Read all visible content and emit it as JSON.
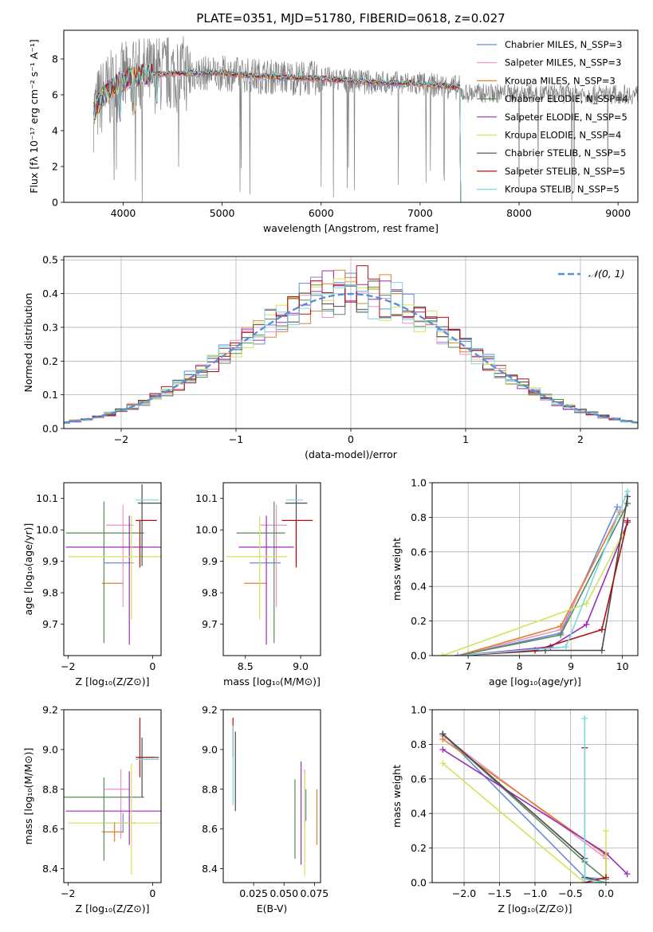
{
  "figure_title": "PLATE=0351, MJD=51780, FIBERID=0618, z=0.027",
  "colors": {
    "c0": "#6a8ad8",
    "c1": "#e994c9",
    "c2": "#e0822e",
    "c3": "#5a8a5a",
    "c4": "#9a2fb8",
    "c5": "#d4e35a",
    "c6": "#4a4a4a",
    "c7": "#b01010",
    "c8": "#7ad8e0",
    "grid": "#b0b0b0",
    "obs": "#808080",
    "normal": "#5b8fd4"
  },
  "chart_data": [
    {
      "id": "spectrum",
      "type": "line",
      "title": "PLATE=0351, MJD=51780, FIBERID=0618, z=0.027",
      "xlabel": "wavelength [Angstrom, rest frame]",
      "ylabel": "Flux [fλ 10⁻¹⁷ erg cm⁻² s⁻¹ A⁻¹]",
      "xlim": [
        3400,
        9200
      ],
      "ylim": [
        0,
        9.6
      ],
      "xticks": [
        "4000",
        "5000",
        "6000",
        "7000",
        "8000",
        "9000"
      ],
      "yticks": [
        "0",
        "2",
        "4",
        "6",
        "8"
      ],
      "grid": false,
      "legend_position": "top-right",
      "model_coverage": [
        3700,
        7420
      ],
      "observed_coverage": [
        3700,
        9200
      ],
      "continuum": {
        "x": [
          3700,
          3800,
          3950,
          4000,
          4200,
          4500,
          5000,
          5500,
          6000,
          6500,
          7000,
          7400
        ],
        "y": [
          5.0,
          6.0,
          6.6,
          6.8,
          7.1,
          7.2,
          7.2,
          7.0,
          6.9,
          6.7,
          6.6,
          6.4
        ]
      },
      "series": [
        {
          "name": "Chabrier MILES, N_SSP=3",
          "color_key": "c0"
        },
        {
          "name": "Salpeter MILES, N_SSP=3",
          "color_key": "c1"
        },
        {
          "name": "Kroupa MILES, N_SSP=3",
          "color_key": "c2"
        },
        {
          "name": "Chabrier ELODIE, N_SSP=4",
          "color_key": "c3"
        },
        {
          "name": "Salpeter ELODIE, N_SSP=5",
          "color_key": "c4"
        },
        {
          "name": "Kroupa ELODIE, N_SSP=4",
          "color_key": "c5"
        },
        {
          "name": "Chabrier STELIB, N_SSP=5",
          "color_key": "c6"
        },
        {
          "name": "Salpeter STELIB, N_SSP=5",
          "color_key": "c7"
        },
        {
          "name": "Kroupa STELIB, N_SSP=5",
          "color_key": "c8"
        }
      ]
    },
    {
      "id": "residuals",
      "type": "line",
      "xlabel": "(data-model)/error",
      "ylabel": "Normed distribution",
      "xlim": [
        -2.5,
        2.5
      ],
      "ylim": [
        0,
        0.51
      ],
      "xticks": [
        "−2",
        "−1",
        "0",
        "1",
        "2"
      ],
      "yticks": [
        "0.0",
        "0.1",
        "0.2",
        "0.3",
        "0.4",
        "0.5"
      ],
      "grid": true,
      "legend_position": "top-right",
      "legend": "𝒩(0, 1)",
      "normal": {
        "mean": 0,
        "sigma": 1
      },
      "bin_width": 0.1,
      "histogram_color_keys": [
        "c0",
        "c1",
        "c2",
        "c3",
        "c4",
        "c5",
        "c6",
        "c7",
        "c8"
      ],
      "approx_peak": 0.49
    },
    {
      "id": "age-vs-z",
      "type": "scatter",
      "xlabel": "Z [log₁₀(Z/Z⊙)]",
      "ylabel": "age  [log₁₀(age/yr)]",
      "xlim": [
        -2.1,
        0.2
      ],
      "ylim": [
        9.6,
        10.15
      ],
      "xticks": [
        "−2",
        "0"
      ],
      "yticks": [
        "9.7",
        "9.8",
        "9.9",
        "10.0",
        "10.1"
      ],
      "points": [
        {
          "x": -0.55,
          "y": 9.895,
          "xerr": [
            0.6,
            0.1
          ],
          "yerr": [
            0.0,
            0.0
          ],
          "color_key": "c0"
        },
        {
          "x": -0.7,
          "y": 10.015,
          "xerr": [
            0.4,
            0.25
          ],
          "yerr": [
            0.26,
            0.065
          ],
          "color_key": "c1"
        },
        {
          "x": -0.9,
          "y": 9.83,
          "xerr": [
            0.3,
            0.2
          ],
          "yerr": [
            0.0,
            0.0
          ],
          "color_key": "c2"
        },
        {
          "x": -1.15,
          "y": 9.99,
          "xerr": [
            0.9,
            0.95
          ],
          "yerr": [
            0.35,
            0.1
          ],
          "color_key": "c3"
        },
        {
          "x": -0.55,
          "y": 9.945,
          "xerr": [
            1.5,
            1.45
          ],
          "yerr": [
            0.31,
            0.1
          ],
          "color_key": "c4"
        },
        {
          "x": -0.5,
          "y": 9.915,
          "xerr": [
            1.5,
            1.3
          ],
          "yerr": [
            0.2,
            0.13
          ],
          "color_key": "c5"
        },
        {
          "x": -0.25,
          "y": 10.085,
          "xerr": [
            0.1,
            0.5
          ],
          "yerr": [
            0.2,
            0.06
          ],
          "color_key": "c6"
        },
        {
          "x": -0.3,
          "y": 10.03,
          "xerr": [
            0.1,
            0.4
          ],
          "yerr": [
            0.15,
            0.0
          ],
          "color_key": "c7"
        },
        {
          "x": -0.35,
          "y": 10.095,
          "xerr": [
            0.05,
            0.5
          ],
          "yerr": [
            0.0,
            0.0
          ],
          "color_key": "c8"
        }
      ]
    },
    {
      "id": "age-vs-mass",
      "type": "scatter",
      "xlabel": "mass [log₁₀(M/M⊙)]",
      "ylabel": "",
      "xlim": [
        8.3,
        9.18
      ],
      "ylim": [
        9.6,
        10.15
      ],
      "xticks": [
        "8.5",
        "9.0"
      ],
      "yticks": [
        "9.7",
        "9.8",
        "9.9",
        "10.0",
        "10.1"
      ],
      "points": [
        {
          "x": 8.72,
          "y": 9.895,
          "xerr": [
            0.18,
            0.1
          ],
          "yerr": [
            0.0,
            0.0
          ],
          "color_key": "c0"
        },
        {
          "x": 8.78,
          "y": 10.015,
          "xerr": [
            0.15,
            0.1
          ],
          "yerr": [
            0.26,
            0.065
          ],
          "color_key": "c1"
        },
        {
          "x": 8.59,
          "y": 9.83,
          "xerr": [
            0.1,
            0.1
          ],
          "yerr": [
            0.0,
            0.0
          ],
          "color_key": "c2"
        },
        {
          "x": 8.76,
          "y": 9.99,
          "xerr": [
            0.34,
            0.1
          ],
          "yerr": [
            0.35,
            0.1
          ],
          "color_key": "c3"
        },
        {
          "x": 8.69,
          "y": 9.945,
          "xerr": [
            0.25,
            0.25
          ],
          "yerr": [
            0.31,
            0.1
          ],
          "color_key": "c4"
        },
        {
          "x": 8.63,
          "y": 9.915,
          "xerr": [
            0.3,
            0.25
          ],
          "yerr": [
            0.2,
            0.13
          ],
          "color_key": "c5"
        },
        {
          "x": 8.96,
          "y": 10.085,
          "xerr": [
            0.1,
            0.1
          ],
          "yerr": [
            0.2,
            0.06
          ],
          "color_key": "c6"
        },
        {
          "x": 8.96,
          "y": 10.03,
          "xerr": [
            0.13,
            0.15
          ],
          "yerr": [
            0.15,
            0.0
          ],
          "color_key": "c7"
        },
        {
          "x": 8.92,
          "y": 10.095,
          "xerr": [
            0.05,
            0.1
          ],
          "yerr": [
            0.0,
            0.0
          ],
          "color_key": "c8"
        }
      ]
    },
    {
      "id": "weight-vs-age",
      "type": "line",
      "xlabel": "age  [log₁₀(age/yr)]",
      "ylabel": "mass weight",
      "xlim": [
        6.3,
        10.3
      ],
      "ylim": [
        0,
        1.0
      ],
      "xticks": [
        "7",
        "8",
        "9",
        "10"
      ],
      "yticks": [
        "0.0",
        "0.2",
        "0.4",
        "0.6",
        "0.8",
        "1.0"
      ],
      "grid": true,
      "series": [
        {
          "color_key": "c0",
          "x": [
            6.8,
            8.8,
            9.9
          ],
          "y": [
            0.0,
            0.13,
            0.86
          ]
        },
        {
          "color_key": "c1",
          "x": [
            6.8,
            8.8,
            9.95
          ],
          "y": [
            0.0,
            0.15,
            0.84
          ]
        },
        {
          "color_key": "c2",
          "x": [
            6.8,
            8.8,
            9.95
          ],
          "y": [
            0.0,
            0.17,
            0.83
          ]
        },
        {
          "color_key": "c3",
          "x": [
            6.8,
            8.8,
            10.1
          ],
          "y": [
            0.0,
            0.12,
            0.88
          ]
        },
        {
          "color_key": "c4",
          "x": [
            6.8,
            8.6,
            9.3,
            10.1
          ],
          "y": [
            0.0,
            0.05,
            0.18,
            0.77
          ]
        },
        {
          "color_key": "c5",
          "x": [
            6.5,
            9.3,
            10.0
          ],
          "y": [
            0.0,
            0.3,
            0.7
          ]
        },
        {
          "color_key": "c6",
          "x": [
            6.8,
            8.5,
            9.6,
            10.1
          ],
          "y": [
            0.0,
            0.03,
            0.03,
            0.92
          ]
        },
        {
          "color_key": "c7",
          "x": [
            6.8,
            8.3,
            9.6,
            10.1
          ],
          "y": [
            0.0,
            0.03,
            0.15,
            0.78
          ]
        },
        {
          "color_key": "c8",
          "x": [
            6.8,
            8.9,
            10.1
          ],
          "y": [
            0.0,
            0.05,
            0.95
          ]
        }
      ]
    },
    {
      "id": "mass-vs-z",
      "type": "scatter",
      "xlabel": "Z [log₁₀(Z/Z⊙)]",
      "ylabel": "mass [log₁₀(M/M⊙)]",
      "xlim": [
        -2.1,
        0.2
      ],
      "ylim": [
        8.33,
        9.2
      ],
      "xticks": [
        "−2",
        "0"
      ],
      "yticks": [
        "8.4",
        "8.6",
        "8.8",
        "9.0",
        "9.2"
      ],
      "points": [
        {
          "x": -0.7,
          "y": 8.63,
          "xerr": [
            0.5,
            0.3
          ],
          "yerr": [
            0.05,
            0.05
          ],
          "color_key": "c0"
        },
        {
          "x": -0.75,
          "y": 8.8,
          "xerr": [
            0.4,
            0.2
          ],
          "yerr": [
            0.25,
            0.1
          ],
          "color_key": "c1"
        },
        {
          "x": -0.9,
          "y": 8.585,
          "xerr": [
            0.3,
            0.2
          ],
          "yerr": [
            0.05,
            0.05
          ],
          "color_key": "c2"
        },
        {
          "x": -1.15,
          "y": 8.76,
          "xerr": [
            0.95,
            0.95
          ],
          "yerr": [
            0.32,
            0.1
          ],
          "color_key": "c3"
        },
        {
          "x": -0.55,
          "y": 8.69,
          "xerr": [
            1.5,
            1.45
          ],
          "yerr": [
            0.17,
            0.2
          ],
          "color_key": "c4"
        },
        {
          "x": -0.5,
          "y": 8.63,
          "xerr": [
            1.5,
            1.3
          ],
          "yerr": [
            0.26,
            0.3
          ],
          "color_key": "c5"
        },
        {
          "x": -0.25,
          "y": 8.96,
          "xerr": [
            0.1,
            0.4
          ],
          "yerr": [
            0.2,
            0.1
          ],
          "color_key": "c6"
        },
        {
          "x": -0.3,
          "y": 8.96,
          "xerr": [
            0.1,
            0.35
          ],
          "yerr": [
            0.1,
            0.2
          ],
          "color_key": "c7"
        },
        {
          "x": -0.35,
          "y": 8.95,
          "xerr": [
            0.05,
            0.5
          ],
          "yerr": [
            0.0,
            0.0
          ],
          "color_key": "c8"
        }
      ]
    },
    {
      "id": "mass-vs-ebv",
      "type": "scatter",
      "xlabel": "E(B-V)",
      "ylabel": "",
      "xlim": [
        0.0,
        0.08
      ],
      "ylim": [
        8.33,
        9.2
      ],
      "xticks": [
        "0.025",
        "0.050",
        "0.075"
      ],
      "yticks": [
        "8.4",
        "8.6",
        "8.8",
        "9.0",
        "9.2"
      ],
      "points": [
        {
          "x": 0.068,
          "y": 8.72,
          "yerr": [
            0.08,
            0.08
          ],
          "color_key": "c0"
        },
        {
          "x": 0.067,
          "y": 8.75,
          "yerr": [
            0.15,
            0.15
          ],
          "color_key": "c1"
        },
        {
          "x": 0.077,
          "y": 8.66,
          "yerr": [
            0.14,
            0.14
          ],
          "color_key": "c2"
        },
        {
          "x": 0.059,
          "y": 8.65,
          "yerr": [
            0.2,
            0.2
          ],
          "color_key": "c3"
        },
        {
          "x": 0.064,
          "y": 8.68,
          "yerr": [
            0.26,
            0.26
          ],
          "color_key": "c4"
        },
        {
          "x": 0.067,
          "y": 8.62,
          "yerr": [
            0.26,
            0.26
          ],
          "color_key": "c5"
        },
        {
          "x": 0.01,
          "y": 8.89,
          "yerr": [
            0.2,
            0.2
          ],
          "color_key": "c6"
        },
        {
          "x": 0.008,
          "y": 9.06,
          "yerr": [
            0.1,
            0.1
          ],
          "color_key": "c7"
        },
        {
          "x": 0.008,
          "y": 8.92,
          "yerr": [
            0.2,
            0.2
          ],
          "color_key": "c8"
        }
      ]
    },
    {
      "id": "weight-vs-z",
      "type": "line",
      "xlabel": "Z [log₁₀(Z/Z⊙)]",
      "ylabel": "mass weight",
      "xlim": [
        -2.45,
        0.45
      ],
      "ylim": [
        0,
        1.0
      ],
      "xticks": [
        "−2.0",
        "−1.5",
        "−1.0",
        "−0.5",
        "0.0"
      ],
      "yticks": [
        "0.0",
        "0.2",
        "0.4",
        "0.6",
        "0.8",
        "1.0"
      ],
      "grid": true,
      "series": [
        {
          "color_key": "c0",
          "x": [
            -2.3,
            -0.3,
            0.0
          ],
          "y": [
            0.86,
            0.03,
            0.02
          ]
        },
        {
          "color_key": "c1",
          "x": [
            -2.3,
            0.0,
            0.0
          ],
          "y": [
            0.85,
            0.14,
            0.0
          ]
        },
        {
          "color_key": "c2",
          "x": [
            -2.3,
            0.0,
            0.0
          ],
          "y": [
            0.83,
            0.16,
            0.0
          ]
        },
        {
          "color_key": "c3",
          "x": [
            -2.3,
            -0.3,
            0.0
          ],
          "y": [
            0.86,
            0.12,
            0.02
          ]
        },
        {
          "color_key": "c4",
          "x": [
            -2.3,
            0.0,
            0.3
          ],
          "y": [
            0.77,
            0.17,
            0.05
          ]
        },
        {
          "color_key": "c5",
          "x": [
            -2.3,
            -0.3,
            0.0,
            0.0
          ],
          "y": [
            0.69,
            0.0,
            0.0,
            0.3
          ]
        },
        {
          "color_key": "c6",
          "x": [
            -2.3,
            -0.3,
            -0.3,
            0.0
          ],
          "y": [
            0.86,
            0.14,
            0.03,
            0.0
          ]
        },
        {
          "color_key": "c7",
          "x": [
            -0.3,
            -0.3,
            0.0
          ],
          "y": [
            0.78,
            0.0,
            0.03
          ]
        },
        {
          "color_key": "c8",
          "x": [
            -0.3,
            -0.3,
            0.0
          ],
          "y": [
            0.95,
            0.02,
            0.0
          ]
        }
      ]
    }
  ]
}
